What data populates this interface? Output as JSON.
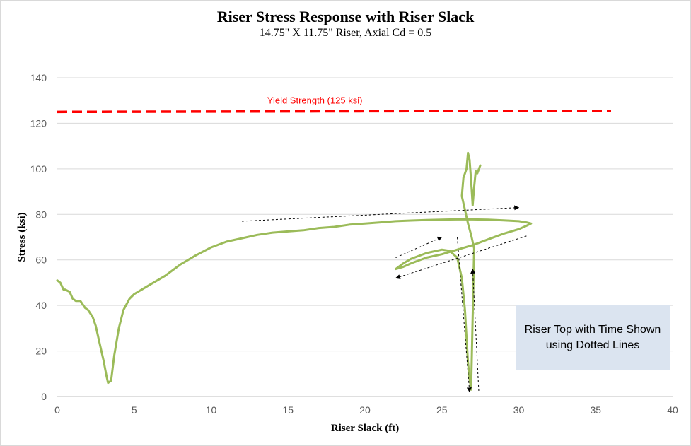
{
  "chart_data": {
    "type": "line",
    "title": "Riser Stress Response with Riser Slack",
    "subtitle": "14.75\" X 11.75\" Riser, Axial  Cd = 0.5",
    "xlabel": "Riser Slack (ft)",
    "ylabel": "Stress (ksi)",
    "xlim": [
      0,
      40
    ],
    "ylim": [
      0,
      140
    ],
    "xticks": [
      0,
      5,
      10,
      15,
      20,
      25,
      30,
      35,
      40
    ],
    "yticks": [
      0,
      20,
      40,
      60,
      80,
      100,
      120,
      140
    ],
    "grid": "horizontal",
    "colors": {
      "series": "#9bbb59",
      "yield": "#ff0000",
      "arrows": "#000000",
      "note_bg": "#dbe4f0"
    },
    "reference_line": {
      "label": "Yield Strength  (125 ksi)",
      "x": [
        0,
        36
      ],
      "y": [
        125,
        125.5
      ],
      "color": "#ff0000",
      "style": "dashed"
    },
    "series": [
      {
        "color": "#9bbb59",
        "x": [
          0.0,
          0.2,
          0.4,
          0.5,
          0.8,
          1.0,
          1.2,
          1.5,
          1.8,
          2.0,
          2.3,
          2.5,
          2.7,
          3.0,
          3.2,
          3.3,
          3.5,
          3.7,
          4.0,
          4.3,
          4.7,
          5.0,
          5.5,
          6.0,
          7.0,
          8.0,
          9.0,
          10.0,
          11.0,
          12.0,
          13.0,
          14.0,
          15.0,
          16.0,
          17.0,
          18.0,
          19.0,
          20.0,
          21.0,
          22.0,
          23.0,
          24.0,
          25.0,
          26.0,
          27.0,
          28.0,
          29.0,
          30.0,
          30.5,
          30.8,
          30.5,
          30.0,
          29.0,
          28.0,
          27.0,
          26.0,
          25.0,
          24.0,
          23.0,
          22.5,
          22.0,
          22.5,
          23.0,
          24.0,
          25.0,
          25.5,
          26.0,
          26.3,
          26.5,
          26.6,
          26.7,
          26.8,
          26.9,
          27.0,
          27.1,
          26.9,
          26.7,
          26.5,
          26.3,
          26.4,
          26.6,
          26.7,
          26.8,
          26.9,
          27.0,
          27.1,
          27.2,
          27.3,
          27.5
        ],
        "y": [
          51,
          50,
          47,
          47,
          46,
          43,
          42,
          42,
          39,
          38,
          35,
          31,
          25,
          16,
          9,
          6,
          7,
          18,
          30,
          38,
          43,
          45,
          47,
          49,
          53,
          58,
          62,
          65.5,
          68,
          69.5,
          71,
          72,
          72.5,
          73,
          74,
          74.5,
          75.5,
          76,
          76.5,
          77,
          77.3,
          77.5,
          77.7,
          77.8,
          77.8,
          77.7,
          77.4,
          77.0,
          76.5,
          76.0,
          75.0,
          73.5,
          71.5,
          69.0,
          66.5,
          64.5,
          62.5,
          61.0,
          58.5,
          57.0,
          56.0,
          58.5,
          60.5,
          63.0,
          64.5,
          64.0,
          61.0,
          52.0,
          38.0,
          26.0,
          15.0,
          8.0,
          3.0,
          35.0,
          65.0,
          71.0,
          76.0,
          82.0,
          88.0,
          96.0,
          100.0,
          107.0,
          104.0,
          95.0,
          84.0,
          92.0,
          99.0,
          98.0,
          101.5
        ]
      }
    ],
    "arrows": [
      {
        "from": [
          12.0,
          77.0
        ],
        "to": [
          30.0,
          83.0
        ]
      },
      {
        "from": [
          30.5,
          70.5
        ],
        "to": [
          22.0,
          52.0
        ]
      },
      {
        "from": [
          22.0,
          61.0
        ],
        "to": [
          25.0,
          70.0
        ]
      },
      {
        "from": [
          26.0,
          70.0
        ],
        "to": [
          26.8,
          2.0
        ]
      },
      {
        "from": [
          27.4,
          2.5
        ],
        "to": [
          27.0,
          56.0
        ]
      }
    ],
    "note": "Riser Top with Time Shown using Dotted Lines"
  }
}
